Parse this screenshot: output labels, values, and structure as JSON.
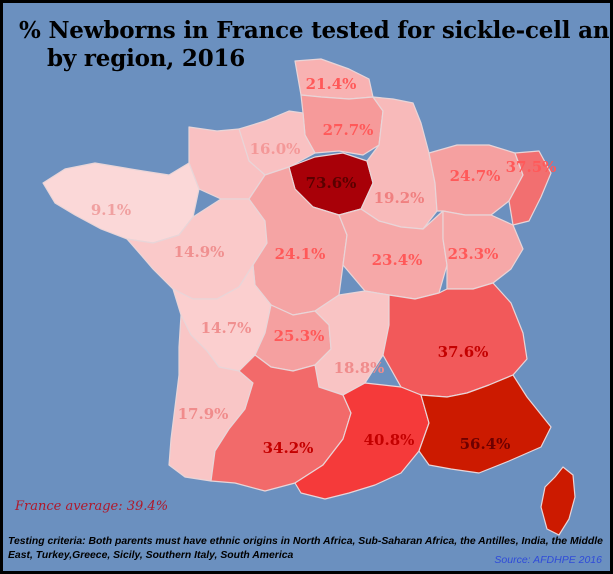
{
  "title_line1": "% Newborns in France tested for sickle-cell anemia",
  "title_line2": "by region, 2016",
  "average_text": "France average: 39.4%",
  "criteria_text": "Testing criteria: Both parents must have ethnic origins in North Africa, Sub-Saharan Africa, the Antilles, India, the Middle East, Turkey,Greece, Sicily, Southern Italy, South America",
  "source_text": "Source: AFDHPE 2016",
  "colors": {
    "sea": "#6b90bf",
    "border": "#e8d5d8",
    "average": "#b0182a",
    "source": "#2f4bd9"
  },
  "regions": [
    {
      "id": "nord-pas-de-calais",
      "value": 21.4,
      "label": "21.4%",
      "fill": "#f8b2b2",
      "text_color": "#ff5959"
    },
    {
      "id": "picardie",
      "value": 27.7,
      "label": "27.7%",
      "fill": "#f69a9a",
      "text_color": "#ff5959"
    },
    {
      "id": "ile-de-france",
      "value": 73.6,
      "label": "73.6%",
      "fill": "#a80008",
      "text_color": "#5a0000"
    },
    {
      "id": "haute-normandie",
      "value": 16.0,
      "label": "16.0%",
      "fill": "#f9c1c2",
      "text_color": "#f49898"
    },
    {
      "id": "basse-normandie",
      "value": 16.0,
      "label": "",
      "fill": "#f9c1c2",
      "text_color": "#f49898"
    },
    {
      "id": "bretagne",
      "value": 9.1,
      "label": "9.1%",
      "fill": "#fbd8d8",
      "text_color": "#f0a0a0"
    },
    {
      "id": "pays-de-la-loire",
      "value": 14.9,
      "label": "14.9%",
      "fill": "#fac9c9",
      "text_color": "#f09090"
    },
    {
      "id": "centre",
      "value": 24.1,
      "label": "24.1%",
      "fill": "#f5a4a4",
      "text_color": "#ff5959"
    },
    {
      "id": "champagne-ardenne",
      "value": 19.2,
      "label": "19.2%",
      "fill": "#f8baba",
      "text_color": "#f08080"
    },
    {
      "id": "lorraine",
      "value": 24.7,
      "label": "24.7%",
      "fill": "#f5a0a0",
      "text_color": "#ff5959"
    },
    {
      "id": "alsace",
      "value": 37.5,
      "label": "37.5%",
      "fill": "#f26f70",
      "text_color": "#ff5959"
    },
    {
      "id": "bourgogne",
      "value": 23.4,
      "label": "23.4%",
      "fill": "#f6a8a8",
      "text_color": "#ff5959"
    },
    {
      "id": "franche-comte",
      "value": 23.3,
      "label": "23.3%",
      "fill": "#f6a8a8",
      "text_color": "#ff5959"
    },
    {
      "id": "poitou-charentes",
      "value": 14.7,
      "label": "14.7%",
      "fill": "#fbcfcf",
      "text_color": "#f09090"
    },
    {
      "id": "limousin",
      "value": 25.3,
      "label": "25.3%",
      "fill": "#f5a0a0",
      "text_color": "#ff5959"
    },
    {
      "id": "auvergne",
      "value": 18.8,
      "label": "18.8%",
      "fill": "#f9c4c4",
      "text_color": "#f08c8c"
    },
    {
      "id": "rhone-alpes",
      "value": 37.6,
      "label": "37.6%",
      "fill": "#f2595a",
      "text_color": "#c40000"
    },
    {
      "id": "aquitaine",
      "value": 17.9,
      "label": "17.9%",
      "fill": "#f9c6c6",
      "text_color": "#f08c8c"
    },
    {
      "id": "midi-pyrenees",
      "value": 34.2,
      "label": "34.2%",
      "fill": "#f26a6a",
      "text_color": "#c40000"
    },
    {
      "id": "languedoc-roussillon",
      "value": 40.8,
      "label": "40.8%",
      "fill": "#f53a3a",
      "text_color": "#c40000"
    },
    {
      "id": "provence-alpes-cote-dazur",
      "value": 56.4,
      "label": "56.4%",
      "fill": "#cc1a00",
      "text_color": "#6e0000"
    },
    {
      "id": "corse",
      "value": 56.4,
      "label": "",
      "fill": "#cc1a00",
      "text_color": "#6e0000"
    }
  ]
}
